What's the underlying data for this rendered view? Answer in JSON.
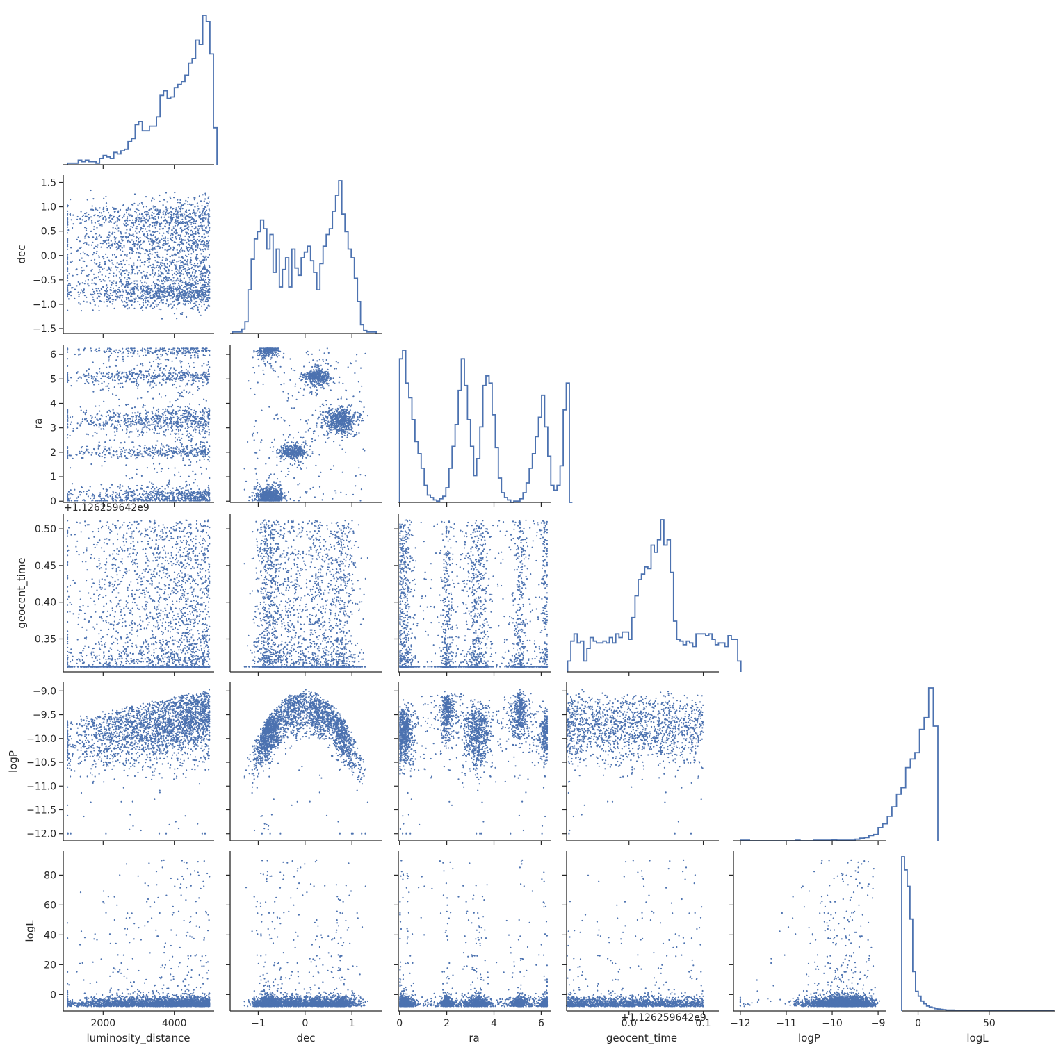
{
  "chart_data": {
    "type": "scatter",
    "layout": "corner-pairplot",
    "variables": [
      "luminosity_distance",
      "dec",
      "ra",
      "geocent_time",
      "logP",
      "logL"
    ],
    "axis_labels": [
      "luminosity_distance",
      "dec",
      "ra",
      "geocent_time",
      "logP",
      "logL"
    ],
    "ranges": {
      "luminosity_distance": [
        880,
        5120
      ],
      "dec": [
        -1.6,
        1.65
      ],
      "ra": [
        -0.05,
        6.4
      ],
      "geocent_time": [
        -0.084,
        0.121
      ],
      "logP": [
        -12.15,
        -8.82
      ],
      "logL": [
        -11,
        96
      ]
    },
    "diag_ranges": {
      "luminosity_distance": [
        880,
        5120
      ],
      "dec": [
        -1.6,
        1.65
      ],
      "ra": [
        -0.05,
        6.4
      ],
      "geocent_time": [
        -0.084,
        0.121
      ],
      "logP": [
        -12.15,
        -8.82
      ],
      "logL": [
        -11.5,
        96
      ]
    },
    "geocent_offset": 1126259642,
    "geocent_offset_label": "+1.126259642e9",
    "geocent_offset_label_x": "+1.126259642e9",
    "geocent_time_y_range": [
      0.305,
      0.52
    ],
    "ticks": {
      "luminosity_distance": {
        "values": [
          2000,
          4000
        ],
        "labels": [
          "2000",
          "4000"
        ]
      },
      "dec": {
        "values": [
          -1.5,
          -1.0,
          -0.5,
          0.0,
          0.5,
          1.0,
          1.5
        ],
        "labels": [
          "−1.5",
          "−1.0",
          "−0.5",
          "0.0",
          "0.5",
          "1.0",
          "1.5"
        ]
      },
      "dec_x": {
        "values": [
          -1,
          0,
          1
        ],
        "labels": [
          "−1",
          "0",
          "1"
        ]
      },
      "ra": {
        "values": [
          0,
          1,
          2,
          3,
          4,
          5,
          6
        ],
        "labels": [
          "0",
          "1",
          "2",
          "3",
          "4",
          "5",
          "6"
        ]
      },
      "ra_x": {
        "values": [
          0,
          2,
          4,
          6
        ],
        "labels": [
          "0",
          "2",
          "4",
          "6"
        ]
      },
      "geocent_time_y": {
        "values": [
          0.35,
          0.4,
          0.45,
          0.5
        ],
        "labels": [
          "0.35",
          "0.40",
          "0.45",
          "0.50"
        ]
      },
      "geocent_time_x": {
        "values": [
          0.0,
          0.1
        ],
        "labels": [
          "0.0",
          "0.1"
        ]
      },
      "logP": {
        "values": [
          -12.0,
          -11.5,
          -11.0,
          -10.5,
          -10.0,
          -9.5,
          -9.0
        ],
        "labels": [
          "−12.0",
          "−11.5",
          "−11.0",
          "−10.5",
          "−10.0",
          "−9.5",
          "−9.0"
        ]
      },
      "logP_x": {
        "values": [
          -12,
          -11,
          -10,
          -9
        ],
        "labels": [
          "−12",
          "−11",
          "−10",
          "−9"
        ]
      },
      "logL": {
        "values": [
          0,
          20,
          40,
          60,
          80
        ],
        "labels": [
          "0",
          "20",
          "40",
          "60",
          "80"
        ]
      },
      "logL_x": {
        "values": [
          0,
          50
        ],
        "labels": [
          "0",
          "50"
        ]
      }
    },
    "histograms": {
      "luminosity_distance": {
        "edges_start": 1000,
        "bin_width": 100,
        "counts": [
          1,
          1,
          1,
          3,
          2,
          3,
          2,
          2,
          1,
          4,
          6,
          5,
          4,
          8,
          7,
          9,
          10,
          15,
          17,
          26,
          28,
          22,
          22,
          25,
          25,
          31,
          45,
          48,
          43,
          44,
          50,
          52,
          54,
          58,
          66,
          69,
          81,
          78,
          97,
          93,
          72,
          24
        ]
      },
      "dec": {
        "edges_start": -1.55,
        "bin_width": 0.0667,
        "counts": [
          1,
          1,
          1,
          3,
          8,
          30,
          51,
          65,
          70,
          78,
          72,
          58,
          68,
          42,
          58,
          32,
          44,
          52,
          32,
          58,
          45,
          40,
          52,
          56,
          60,
          50,
          42,
          30,
          48,
          60,
          68,
          72,
          84,
          95,
          105,
          82,
          70,
          58,
          52,
          38,
          22,
          6,
          2,
          1,
          1,
          1
        ]
      },
      "ra": {
        "edges_start": 0,
        "bin_width": 0.1308,
        "counts": [
          118,
          125,
          98,
          86,
          68,
          50,
          40,
          28,
          14,
          6,
          4,
          2,
          1,
          3,
          5,
          12,
          28,
          46,
          64,
          92,
          118,
          96,
          68,
          46,
          22,
          36,
          62,
          96,
          104,
          98,
          72,
          45,
          20,
          8,
          4,
          2,
          0,
          1,
          1,
          3,
          8,
          16,
          28,
          40,
          54,
          70,
          88,
          62,
          38,
          14,
          10,
          14,
          30,
          76,
          98,
          0
        ]
      },
      "geocent_time": {
        "edges_start": -0.0826,
        "bin_width": 0.00432,
        "counts": [
          6,
          17,
          21,
          16,
          17,
          6,
          13,
          19,
          17,
          16,
          16,
          17,
          16,
          19,
          16,
          21,
          19,
          22,
          22,
          18,
          30,
          42,
          51,
          54,
          58,
          57,
          70,
          66,
          73,
          84,
          70,
          73,
          55,
          28,
          18,
          17,
          15,
          17,
          16,
          14,
          21,
          21,
          21,
          20,
          21,
          18,
          15,
          16,
          16,
          14,
          20,
          18,
          18,
          6
        ]
      },
      "logP": {
        "edges_start": -12.0,
        "bin_width": 0.1,
        "counts": [
          1,
          1,
          0,
          0,
          0,
          0,
          0,
          0,
          0,
          0,
          0,
          0,
          1,
          0,
          0,
          0,
          1,
          1,
          1,
          1,
          2,
          1,
          1,
          1,
          1,
          3,
          5,
          6,
          10,
          12,
          25,
          32,
          46,
          64,
          88,
          100,
          138,
          154,
          166,
          210,
          232,
          288,
          216
        ]
      },
      "logL": {
        "edges_start": -11.5,
        "bin_width": 1.94,
        "counts": [
          470,
          430,
          380,
          280,
          120,
          60,
          45,
          30,
          22,
          15,
          12,
          10,
          7,
          6,
          5,
          4,
          3,
          3,
          3,
          2,
          2,
          2,
          2,
          2,
          1,
          1,
          1,
          1,
          1,
          1,
          1,
          1,
          1,
          1,
          1,
          1,
          1,
          1,
          1,
          1,
          1,
          1,
          1,
          1,
          1,
          1,
          1,
          1,
          1,
          1,
          1,
          1,
          1,
          1,
          1
        ]
      }
    },
    "samples": {
      "count": 2500,
      "note": "posterior samples shown as scatter points in off-diagonal panels"
    }
  }
}
